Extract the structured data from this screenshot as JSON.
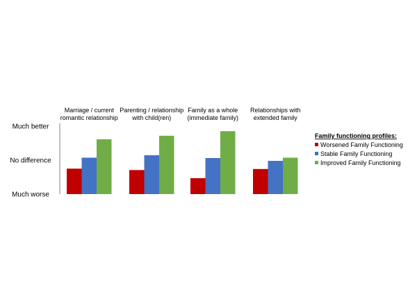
{
  "chart_data": {
    "type": "bar",
    "categories": [
      [
        "Marriage / current",
        "romantic relationship"
      ],
      [
        "Parenting / relationship",
        "with child(ren)"
      ],
      [
        "Family as a whole",
        "(immediate family)"
      ],
      [
        "Relationships with",
        "extended family"
      ]
    ],
    "y_ticks": [
      {
        "value": 3,
        "label": "Much better"
      },
      {
        "value": 2,
        "label": "No difference"
      },
      {
        "value": 1,
        "label": "Much worse"
      }
    ],
    "ylim": [
      1,
      3
    ],
    "series": [
      {
        "name": "Worsened Family Functioning",
        "color": "#c00000",
        "values": [
          1.72,
          1.68,
          1.45,
          1.71
        ]
      },
      {
        "name": "Stable Family Functioning",
        "color": "#4472c4",
        "values": [
          2.03,
          2.1,
          2.02,
          1.94
        ]
      },
      {
        "name": "Improved Family Functioning",
        "color": "#70ad47",
        "values": [
          2.55,
          2.65,
          2.78,
          2.03
        ]
      }
    ],
    "legend": {
      "title": "Family functioning profiles:",
      "placement": "right"
    },
    "grid": false
  }
}
